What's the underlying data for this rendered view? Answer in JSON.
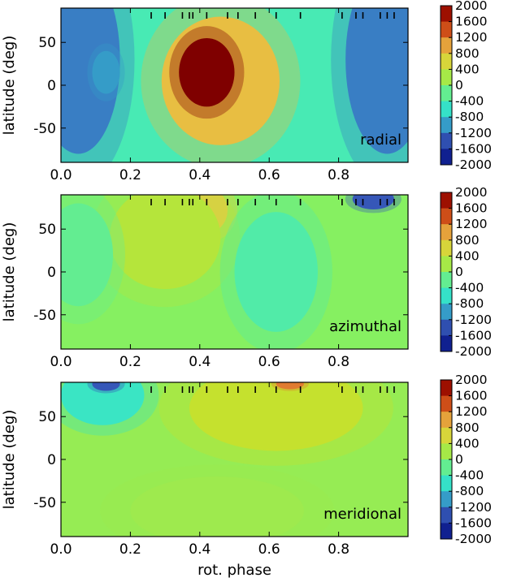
{
  "chart_data": [
    {
      "type": "heatmap",
      "panel_label": "radial",
      "xlabel": "",
      "ylabel": "latitude (deg)",
      "x_ticks": [
        "0.0",
        "0.2",
        "0.4",
        "0.6",
        "0.8"
      ],
      "y_ticks": [
        "50",
        "0",
        "-50"
      ],
      "xlim": [
        0,
        1
      ],
      "ylim": [
        -90,
        90
      ],
      "colorbar_ticks": [
        "2000",
        "1600",
        "1200",
        "800",
        "400",
        "0",
        "-400",
        "-800",
        "-1200",
        "-1600",
        "-2000"
      ],
      "clim": [
        -2000,
        2000
      ],
      "background_value": -350,
      "features": [
        {
          "phase": 0.46,
          "lat": 5,
          "phase_width": 0.17,
          "lat_height": 75,
          "value": 850
        },
        {
          "phase": 0.42,
          "lat": 15,
          "phase_width": 0.08,
          "lat_height": 40,
          "value": 2000
        },
        {
          "phase": 0.05,
          "lat": 30,
          "phase_width": 0.12,
          "lat_height": 110,
          "value": -1100
        },
        {
          "phase": 0.94,
          "lat": 30,
          "phase_width": 0.12,
          "lat_height": 110,
          "value": -1100
        },
        {
          "phase": 0.13,
          "lat": 15,
          "phase_width": 0.04,
          "lat_height": 25,
          "value": -1000
        }
      ]
    },
    {
      "type": "heatmap",
      "panel_label": "azimuthal",
      "xlabel": "",
      "ylabel": "latitude (deg)",
      "x_ticks": [
        "0.0",
        "0.2",
        "0.4",
        "0.6",
        "0.8"
      ],
      "y_ticks": [
        "50",
        "0",
        "-50"
      ],
      "xlim": [
        0,
        1
      ],
      "ylim": [
        -90,
        90
      ],
      "colorbar_ticks": [
        "2000",
        "1600",
        "1200",
        "800",
        "400",
        "0",
        "-400",
        "-800",
        "-1200",
        "-1600",
        "-2000"
      ],
      "clim": [
        -2000,
        2000
      ],
      "background_value": 0,
      "features": [
        {
          "phase": 0.4,
          "lat": 72,
          "phase_width": 0.08,
          "lat_height": 30,
          "value": 800
        },
        {
          "phase": 0.3,
          "lat": 40,
          "phase_width": 0.16,
          "lat_height": 60,
          "value": 300
        },
        {
          "phase": 0.62,
          "lat": 0,
          "phase_width": 0.12,
          "lat_height": 70,
          "value": -300
        },
        {
          "phase": 0.9,
          "lat": 85,
          "phase_width": 0.06,
          "lat_height": 12,
          "value": -1300
        },
        {
          "phase": 0.05,
          "lat": 20,
          "phase_width": 0.1,
          "lat_height": 60,
          "value": -200
        }
      ]
    },
    {
      "type": "heatmap",
      "panel_label": "meridional",
      "xlabel": "rot. phase",
      "ylabel": "latitude (deg)",
      "x_ticks": [
        "0.0",
        "0.2",
        "0.4",
        "0.6",
        "0.8"
      ],
      "y_ticks": [
        "50",
        "0",
        "-50"
      ],
      "xlim": [
        0,
        1
      ],
      "ylim": [
        -90,
        90
      ],
      "colorbar_ticks": [
        "2000",
        "1600",
        "1200",
        "800",
        "400",
        "0",
        "-400",
        "-800",
        "-1200",
        "-1600",
        "-2000"
      ],
      "clim": [
        -2000,
        2000
      ],
      "background_value": 100,
      "features": [
        {
          "phase": 0.12,
          "lat": 75,
          "phase_width": 0.12,
          "lat_height": 35,
          "value": -500
        },
        {
          "phase": 0.13,
          "lat": 88,
          "phase_width": 0.04,
          "lat_height": 8,
          "value": -1300
        },
        {
          "phase": 0.62,
          "lat": 60,
          "phase_width": 0.25,
          "lat_height": 50,
          "value": 400
        },
        {
          "phase": 0.66,
          "lat": 88,
          "phase_width": 0.04,
          "lat_height": 6,
          "value": 1200
        },
        {
          "phase": 0.45,
          "lat": -60,
          "phase_width": 0.25,
          "lat_height": 40,
          "value": 150
        }
      ]
    }
  ],
  "observation_phases": [
    0.26,
    0.3,
    0.35,
    0.37,
    0.38,
    0.42,
    0.48,
    0.51,
    0.56,
    0.62,
    0.69,
    0.81,
    0.85,
    0.87,
    0.92,
    0.94,
    0.96
  ]
}
